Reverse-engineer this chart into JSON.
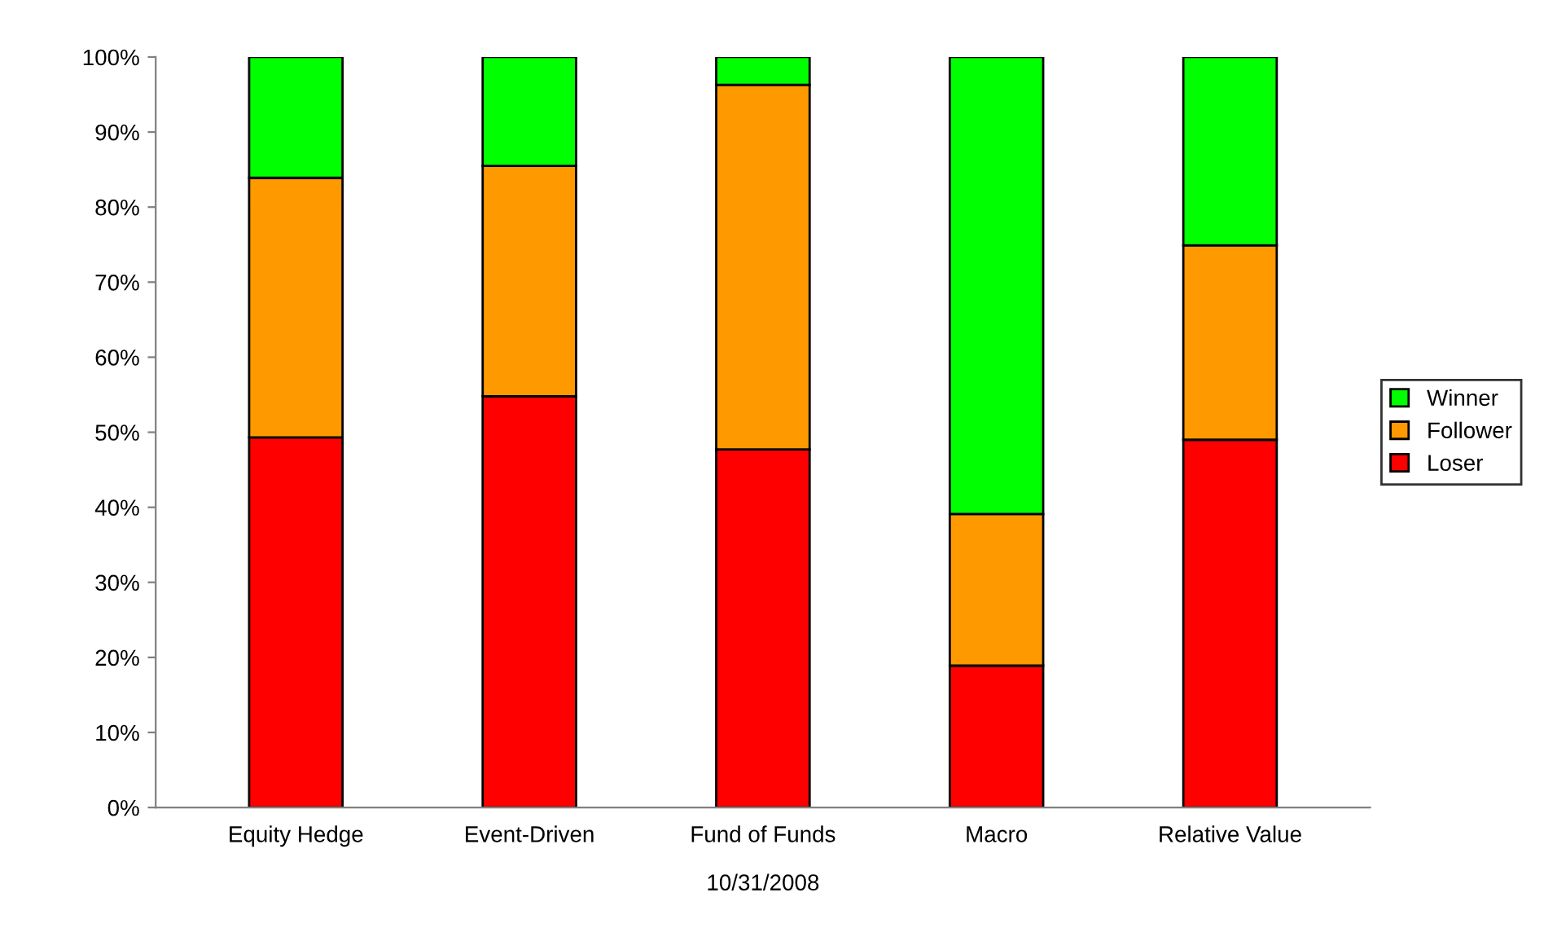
{
  "chart_data": {
    "type": "bar",
    "stacked": true,
    "xlabel": "10/31/2008",
    "categories": [
      "Equity Hedge",
      "Event-Driven",
      "Fund of Funds",
      "Macro",
      "Relative Value"
    ],
    "series": [
      {
        "name": "Loser",
        "color": "#ff0000",
        "values": [
          49.3,
          54.8,
          47.7,
          18.9,
          49.0
        ]
      },
      {
        "name": "Follower",
        "color": "#ff9900",
        "values": [
          34.6,
          30.7,
          48.6,
          20.2,
          25.9
        ]
      },
      {
        "name": "Winner",
        "color": "#00ff00",
        "values": [
          16.1,
          14.5,
          3.7,
          60.9,
          25.1
        ]
      }
    ],
    "ylim": [
      0,
      100
    ],
    "yticks": [
      {
        "value": 0,
        "label": "0%"
      },
      {
        "value": 10,
        "label": "10%"
      },
      {
        "value": 20,
        "label": "20%"
      },
      {
        "value": 30,
        "label": "30%"
      },
      {
        "value": 40,
        "label": "40%"
      },
      {
        "value": 50,
        "label": "50%"
      },
      {
        "value": 60,
        "label": "60%"
      },
      {
        "value": 70,
        "label": "70%"
      },
      {
        "value": 80,
        "label": "80%"
      },
      {
        "value": 90,
        "label": "90%"
      },
      {
        "value": 100,
        "label": "100%"
      }
    ],
    "grid": false,
    "legend": "right"
  }
}
